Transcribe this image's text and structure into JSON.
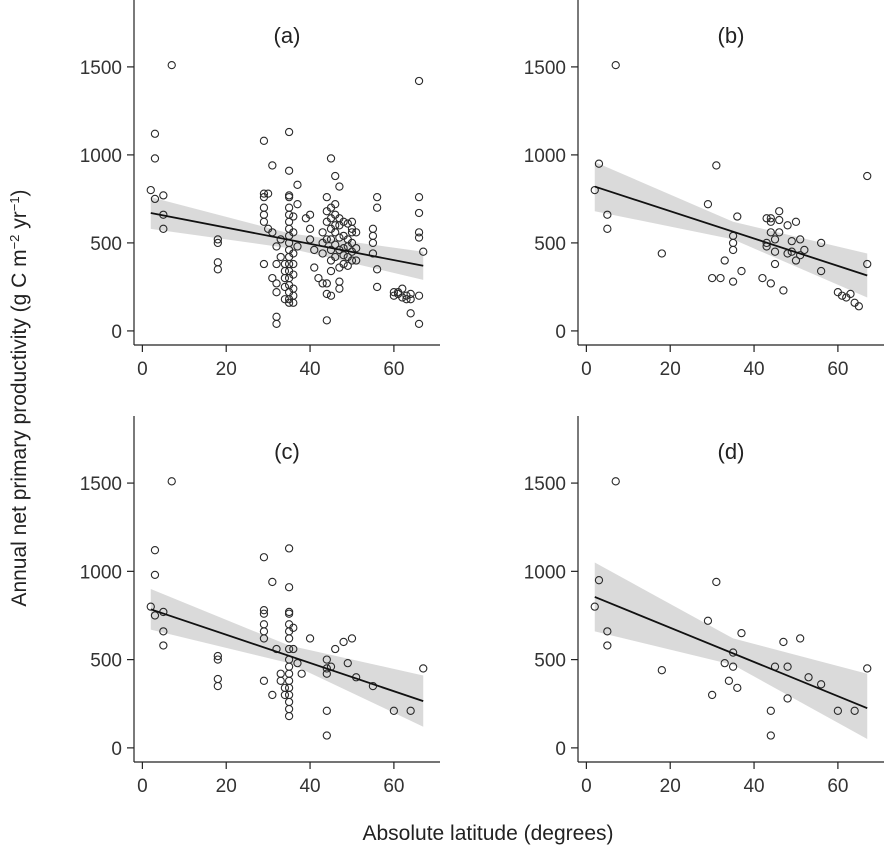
{
  "chart_data": {
    "type": "scatter",
    "ylabel_parts": {
      "text": "Annual net primary productivity (g C m",
      "sup1": "−2",
      "mid": " yr",
      "sup2": "−1",
      "end": ")"
    },
    "xlabel": "Absolute latitude (degrees)",
    "xlim": [
      -2,
      71
    ],
    "ylim": [
      -80,
      1880
    ],
    "xticks": [
      0,
      20,
      40,
      60
    ],
    "yticks": [
      0,
      500,
      1000,
      1500
    ],
    "panels": [
      {
        "label": "(a)",
        "fit": {
          "x": [
            2,
            67
          ],
          "y": [
            670,
            370
          ]
        },
        "ci": {
          "x": [
            2,
            35,
            67
          ],
          "upper": [
            760,
            555,
            450
          ],
          "lower": [
            580,
            470,
            290
          ]
        },
        "points": [
          [
            2,
            800
          ],
          [
            3,
            750
          ],
          [
            3,
            1120
          ],
          [
            3,
            980
          ],
          [
            5,
            770
          ],
          [
            5,
            660
          ],
          [
            5,
            580
          ],
          [
            7,
            1510
          ],
          [
            18,
            520
          ],
          [
            18,
            500
          ],
          [
            18,
            390
          ],
          [
            18,
            350
          ],
          [
            29,
            1080
          ],
          [
            29,
            780
          ],
          [
            29,
            760
          ],
          [
            29,
            700
          ],
          [
            29,
            660
          ],
          [
            29,
            620
          ],
          [
            29,
            380
          ],
          [
            30,
            780
          ],
          [
            30,
            580
          ],
          [
            31,
            940
          ],
          [
            31,
            300
          ],
          [
            31,
            560
          ],
          [
            32,
            480
          ],
          [
            32,
            380
          ],
          [
            32,
            270
          ],
          [
            32,
            220
          ],
          [
            32,
            80
          ],
          [
            32,
            40
          ],
          [
            33,
            520
          ],
          [
            33,
            420
          ],
          [
            34,
            380
          ],
          [
            34,
            340
          ],
          [
            34,
            300
          ],
          [
            34,
            250
          ],
          [
            34,
            180
          ],
          [
            35,
            1130
          ],
          [
            35,
            910
          ],
          [
            35,
            770
          ],
          [
            35,
            760
          ],
          [
            35,
            700
          ],
          [
            35,
            660
          ],
          [
            35,
            620
          ],
          [
            35,
            580
          ],
          [
            35,
            540
          ],
          [
            35,
            500
          ],
          [
            35,
            460
          ],
          [
            35,
            420
          ],
          [
            35,
            380
          ],
          [
            35,
            340
          ],
          [
            35,
            300
          ],
          [
            35,
            260
          ],
          [
            35,
            220
          ],
          [
            35,
            180
          ],
          [
            35,
            160
          ],
          [
            36,
            650
          ],
          [
            36,
            560
          ],
          [
            36,
            440
          ],
          [
            36,
            380
          ],
          [
            36,
            320
          ],
          [
            36,
            240
          ],
          [
            36,
            200
          ],
          [
            36,
            160
          ],
          [
            37,
            830
          ],
          [
            37,
            720
          ],
          [
            37,
            480
          ],
          [
            39,
            640
          ],
          [
            40,
            660
          ],
          [
            40,
            580
          ],
          [
            40,
            520
          ],
          [
            41,
            460
          ],
          [
            41,
            360
          ],
          [
            42,
            300
          ],
          [
            43,
            560
          ],
          [
            43,
            500
          ],
          [
            43,
            440
          ],
          [
            43,
            270
          ],
          [
            44,
            760
          ],
          [
            44,
            680
          ],
          [
            44,
            620
          ],
          [
            44,
            520
          ],
          [
            44,
            270
          ],
          [
            44,
            210
          ],
          [
            44,
            60
          ],
          [
            45,
            980
          ],
          [
            45,
            700
          ],
          [
            45,
            640
          ],
          [
            45,
            580
          ],
          [
            45,
            520
          ],
          [
            45,
            460
          ],
          [
            45,
            400
          ],
          [
            45,
            340
          ],
          [
            45,
            200
          ],
          [
            46,
            880
          ],
          [
            46,
            720
          ],
          [
            46,
            660
          ],
          [
            46,
            600
          ],
          [
            46,
            560
          ],
          [
            46,
            490
          ],
          [
            46,
            420
          ],
          [
            47,
            820
          ],
          [
            47,
            640
          ],
          [
            47,
            600
          ],
          [
            47,
            530
          ],
          [
            47,
            460
          ],
          [
            47,
            360
          ],
          [
            47,
            280
          ],
          [
            47,
            240
          ],
          [
            48,
            620
          ],
          [
            48,
            540
          ],
          [
            48,
            470
          ],
          [
            48,
            430
          ],
          [
            48,
            380
          ],
          [
            49,
            610
          ],
          [
            49,
            520
          ],
          [
            49,
            480
          ],
          [
            49,
            420
          ],
          [
            49,
            370
          ],
          [
            50,
            620
          ],
          [
            50,
            580
          ],
          [
            50,
            560
          ],
          [
            50,
            500
          ],
          [
            50,
            450
          ],
          [
            50,
            400
          ],
          [
            51,
            560
          ],
          [
            51,
            470
          ],
          [
            51,
            400
          ],
          [
            55,
            580
          ],
          [
            55,
            540
          ],
          [
            55,
            500
          ],
          [
            55,
            440
          ],
          [
            56,
            760
          ],
          [
            56,
            700
          ],
          [
            56,
            350
          ],
          [
            56,
            250
          ],
          [
            60,
            220
          ],
          [
            60,
            200
          ],
          [
            61,
            220
          ],
          [
            61,
            210
          ],
          [
            62,
            240
          ],
          [
            62,
            190
          ],
          [
            63,
            200
          ],
          [
            63,
            180
          ],
          [
            64,
            210
          ],
          [
            64,
            180
          ],
          [
            64,
            100
          ],
          [
            66,
            1420
          ],
          [
            66,
            760
          ],
          [
            66,
            670
          ],
          [
            66,
            560
          ],
          [
            66,
            530
          ],
          [
            66,
            200
          ],
          [
            66,
            40
          ],
          [
            67,
            450
          ]
        ]
      },
      {
        "label": "(b)",
        "fit": {
          "x": [
            2,
            67
          ],
          "y": [
            820,
            315
          ]
        },
        "ci": {
          "x": [
            2,
            35,
            67
          ],
          "upper": [
            960,
            620,
            440
          ],
          "lower": [
            680,
            520,
            190
          ]
        },
        "points": [
          [
            2,
            800
          ],
          [
            3,
            950
          ],
          [
            5,
            660
          ],
          [
            5,
            580
          ],
          [
            7,
            1510
          ],
          [
            18,
            440
          ],
          [
            29,
            720
          ],
          [
            30,
            300
          ],
          [
            31,
            940
          ],
          [
            32,
            300
          ],
          [
            33,
            400
          ],
          [
            35,
            540
          ],
          [
            35,
            500
          ],
          [
            35,
            460
          ],
          [
            35,
            280
          ],
          [
            36,
            650
          ],
          [
            37,
            340
          ],
          [
            42,
            300
          ],
          [
            43,
            500
          ],
          [
            43,
            480
          ],
          [
            43,
            640
          ],
          [
            44,
            620
          ],
          [
            44,
            640
          ],
          [
            44,
            560
          ],
          [
            44,
            270
          ],
          [
            45,
            520
          ],
          [
            45,
            450
          ],
          [
            45,
            380
          ],
          [
            46,
            680
          ],
          [
            46,
            630
          ],
          [
            46,
            560
          ],
          [
            47,
            230
          ],
          [
            48,
            600
          ],
          [
            48,
            440
          ],
          [
            49,
            510
          ],
          [
            49,
            450
          ],
          [
            50,
            620
          ],
          [
            50,
            400
          ],
          [
            51,
            520
          ],
          [
            51,
            430
          ],
          [
            52,
            460
          ],
          [
            56,
            500
          ],
          [
            56,
            340
          ],
          [
            60,
            220
          ],
          [
            61,
            200
          ],
          [
            62,
            190
          ],
          [
            63,
            210
          ],
          [
            64,
            160
          ],
          [
            65,
            140
          ],
          [
            67,
            880
          ],
          [
            67,
            380
          ]
        ]
      },
      {
        "label": "(c)",
        "fit": {
          "x": [
            2,
            67
          ],
          "y": [
            785,
            265
          ]
        },
        "ci": {
          "x": [
            2,
            35,
            67
          ],
          "upper": [
            900,
            580,
            410
          ],
          "lower": [
            670,
            480,
            120
          ]
        },
        "points": [
          [
            2,
            800
          ],
          [
            3,
            750
          ],
          [
            3,
            1120
          ],
          [
            3,
            980
          ],
          [
            5,
            770
          ],
          [
            5,
            660
          ],
          [
            5,
            580
          ],
          [
            7,
            1510
          ],
          [
            18,
            520
          ],
          [
            18,
            500
          ],
          [
            18,
            390
          ],
          [
            18,
            350
          ],
          [
            29,
            1080
          ],
          [
            29,
            780
          ],
          [
            29,
            760
          ],
          [
            29,
            700
          ],
          [
            29,
            660
          ],
          [
            29,
            620
          ],
          [
            29,
            380
          ],
          [
            31,
            940
          ],
          [
            31,
            300
          ],
          [
            32,
            560
          ],
          [
            33,
            420
          ],
          [
            33,
            380
          ],
          [
            34,
            340
          ],
          [
            34,
            300
          ],
          [
            35,
            1130
          ],
          [
            35,
            910
          ],
          [
            35,
            770
          ],
          [
            35,
            760
          ],
          [
            35,
            700
          ],
          [
            35,
            660
          ],
          [
            35,
            620
          ],
          [
            35,
            560
          ],
          [
            35,
            500
          ],
          [
            35,
            460
          ],
          [
            35,
            420
          ],
          [
            35,
            380
          ],
          [
            35,
            340
          ],
          [
            35,
            300
          ],
          [
            35,
            260
          ],
          [
            35,
            220
          ],
          [
            35,
            180
          ],
          [
            36,
            680
          ],
          [
            36,
            560
          ],
          [
            37,
            480
          ],
          [
            38,
            420
          ],
          [
            40,
            620
          ],
          [
            44,
            500
          ],
          [
            44,
            450
          ],
          [
            44,
            420
          ],
          [
            44,
            210
          ],
          [
            44,
            70
          ],
          [
            45,
            460
          ],
          [
            46,
            560
          ],
          [
            48,
            600
          ],
          [
            49,
            480
          ],
          [
            50,
            620
          ],
          [
            51,
            400
          ],
          [
            55,
            350
          ],
          [
            60,
            210
          ],
          [
            64,
            210
          ],
          [
            67,
            450
          ]
        ]
      },
      {
        "label": "(d)",
        "fit": {
          "x": [
            2,
            67
          ],
          "y": [
            855,
            225
          ]
        },
        "ci": {
          "x": [
            2,
            35,
            67
          ],
          "upper": [
            1050,
            620,
            420
          ],
          "lower": [
            660,
            470,
            50
          ]
        },
        "points": [
          [
            2,
            800
          ],
          [
            3,
            950
          ],
          [
            5,
            660
          ],
          [
            5,
            580
          ],
          [
            7,
            1510
          ],
          [
            18,
            440
          ],
          [
            29,
            720
          ],
          [
            30,
            300
          ],
          [
            31,
            940
          ],
          [
            33,
            480
          ],
          [
            34,
            380
          ],
          [
            35,
            540
          ],
          [
            35,
            460
          ],
          [
            36,
            340
          ],
          [
            37,
            650
          ],
          [
            44,
            210
          ],
          [
            44,
            70
          ],
          [
            45,
            460
          ],
          [
            47,
            600
          ],
          [
            48,
            460
          ],
          [
            48,
            280
          ],
          [
            51,
            620
          ],
          [
            53,
            400
          ],
          [
            56,
            360
          ],
          [
            60,
            210
          ],
          [
            64,
            210
          ],
          [
            67,
            450
          ]
        ]
      }
    ]
  }
}
